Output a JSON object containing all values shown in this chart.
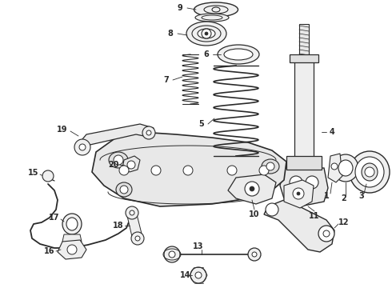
{
  "bg_color": "#ffffff",
  "lc": "#2a2a2a",
  "figsize": [
    4.9,
    3.6
  ],
  "dpi": 100,
  "xlim": [
    0,
    490
  ],
  "ylim": [
    0,
    360
  ]
}
